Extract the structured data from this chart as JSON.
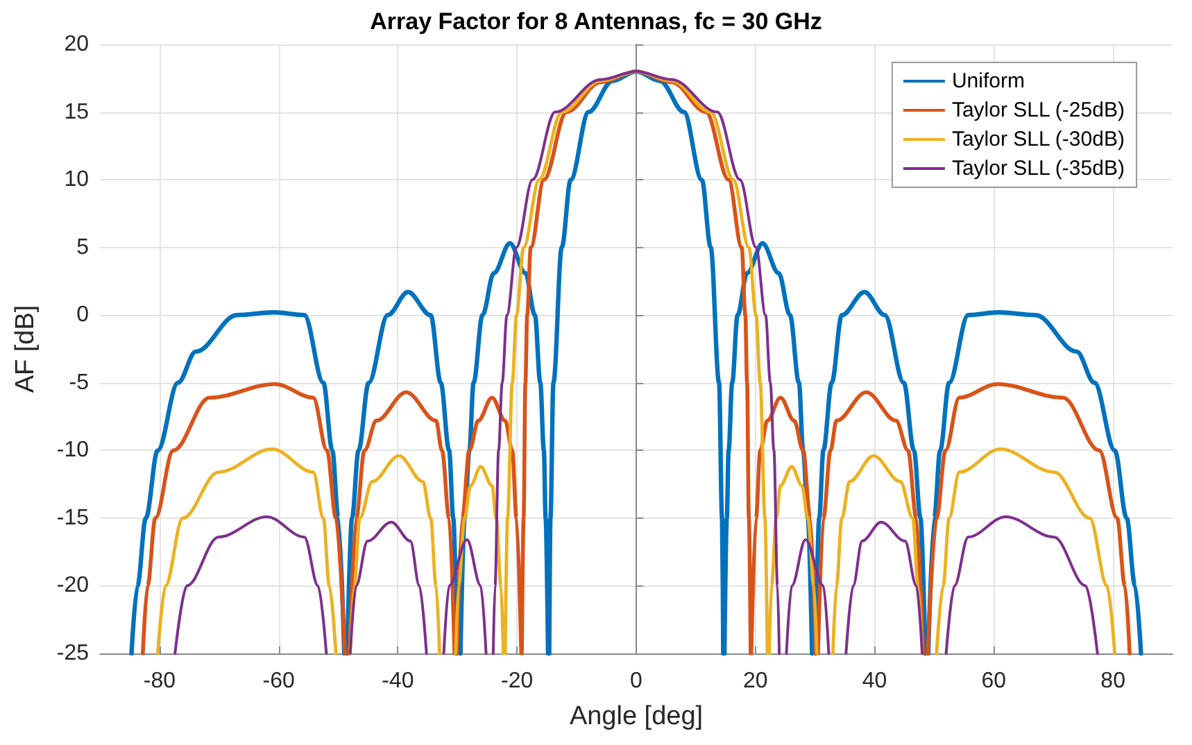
{
  "chart_data": {
    "type": "line",
    "title": "Array Factor for 8 Antennas, fc = 30 GHz",
    "xlabel": "Angle [deg]",
    "ylabel": "AF [dB]",
    "xlim": [
      -90,
      90
    ],
    "xticks": [
      -80,
      -60,
      -40,
      -20,
      0,
      20,
      40,
      60,
      80
    ],
    "ylim": [
      -25,
      20
    ],
    "yticks": [
      -25,
      -20,
      -15,
      -10,
      -5,
      0,
      5,
      10,
      15,
      20
    ],
    "grid": true,
    "legend": "top right",
    "marker": "none",
    "line_style": "solid",
    "series": [
      {
        "name": "Uniform",
        "color": "#0072bd",
        "x": [
          -84.7,
          -83.7,
          -82.3,
          -80.3,
          -76.9,
          -73.9,
          -67.0,
          -60.8,
          -55.7,
          -52.5,
          -51.0,
          -50.0,
          -49.0,
          -48.8,
          -48.5,
          -47.7,
          -46.6,
          -44.9,
          -41.7,
          -38.3,
          -34.5,
          -32.8,
          -31.4,
          -30.7,
          -30.1,
          -29.8,
          -29.5,
          -28.8,
          -28.0,
          -27.3,
          -25.8,
          -23.9,
          -21.2,
          -18.6,
          -17.0,
          -16.1,
          -15.5,
          -15.2,
          -14.8,
          -14.7,
          -14.6,
          -14.4,
          -13.9,
          -12.5,
          -11.0,
          -8.0,
          -4,
          0,
          4,
          8.0,
          11.0,
          12.5,
          13.9,
          14.4,
          14.6,
          14.7,
          14.8,
          15.2,
          15.5,
          16.1,
          17.0,
          18.6,
          21.2,
          23.9,
          25.8,
          27.3,
          28.0,
          28.8,
          29.5,
          29.8,
          30.1,
          30.7,
          31.4,
          32.8,
          34.5,
          38.3,
          41.7,
          44.9,
          46.6,
          47.7,
          48.5,
          48.8,
          49.0,
          50.0,
          51.0,
          52.5,
          55.7,
          60.8,
          67.0,
          73.9,
          76.9,
          80.3,
          82.3,
          83.7,
          84.7
        ],
        "values": [
          -25,
          -20,
          -15,
          -10,
          -5,
          -2.7,
          0,
          0.2,
          0,
          -5,
          -10,
          -15,
          -25,
          null,
          -25,
          -15,
          -10,
          -5,
          0,
          1.7,
          0,
          -5,
          -10,
          -15,
          -25,
          null,
          -25,
          -15,
          -10,
          -5,
          0,
          3.1,
          5.3,
          3.1,
          0,
          -5,
          -10,
          -15,
          -25,
          null,
          -25,
          -15,
          -5,
          5,
          10,
          15,
          17.3,
          18.0,
          17.3,
          15,
          10,
          5,
          -5,
          -15,
          -25,
          null,
          -25,
          -15,
          -10,
          -5,
          0,
          3.1,
          5.3,
          3.1,
          0,
          -5,
          -10,
          -15,
          -25,
          null,
          -25,
          -15,
          -10,
          -5,
          0,
          1.7,
          0,
          -5,
          -10,
          -15,
          -25,
          null,
          -25,
          -15,
          -10,
          -5,
          0,
          0.2,
          0,
          -2.7,
          -5,
          -10,
          -15,
          -20,
          -25
        ]
      },
      {
        "name": "Taylor SLL (-25dB)",
        "color": "#d95319",
        "x": [
          -82.8,
          -82.0,
          -80.7,
          -77.7,
          -71.6,
          -60.6,
          -54.2,
          -51.9,
          -50.4,
          -48.9,
          -48.5,
          -48.1,
          -47.0,
          -45.6,
          -43.6,
          -38.6,
          -33.6,
          -32.6,
          -31.4,
          -30.5,
          -30.3,
          -30.1,
          -29.2,
          -28.0,
          -26.5,
          -24.2,
          -22.0,
          -20.8,
          -20.1,
          -19.3,
          -19.25,
          -19.2,
          -18.9,
          -18.6,
          -18.3,
          -17.7,
          -15.5,
          -11.7,
          -6,
          0,
          6,
          11.7,
          15.5,
          17.7,
          18.3,
          18.6,
          18.9,
          19.2,
          19.25,
          19.3,
          20.1,
          20.8,
          22.0,
          24.2,
          26.5,
          28.0,
          29.2,
          30.1,
          30.3,
          30.5,
          31.4,
          32.6,
          33.6,
          38.6,
          43.6,
          45.6,
          47.0,
          48.1,
          48.5,
          48.9,
          50.4,
          51.9,
          54.2,
          60.6,
          71.6,
          77.7,
          80.7,
          82.0,
          82.8
        ],
        "values": [
          -25,
          -20,
          -15,
          -10,
          -6.1,
          -5.1,
          -6.1,
          -10,
          -15,
          -25,
          null,
          -25,
          -15,
          -10,
          -7.8,
          -5.7,
          -7.8,
          -10,
          -15,
          -25,
          null,
          -25,
          -15,
          -10,
          -7.8,
          -6.1,
          -7.8,
          -10,
          -15,
          -25,
          null,
          -25,
          -15,
          -5,
          0,
          5,
          10,
          15,
          17.2,
          18.0,
          17.2,
          15,
          10,
          5,
          0,
          -5,
          -15,
          -25,
          null,
          -25,
          -15,
          -10,
          -7.8,
          -6.1,
          -7.8,
          -10,
          -15,
          -25,
          null,
          -25,
          -15,
          -10,
          -7.8,
          -5.7,
          -7.8,
          -10,
          -15,
          -25,
          null,
          -25,
          -15,
          -10,
          -6.1,
          -5.1,
          -6.1,
          -10,
          -15,
          -20,
          -25
        ]
      },
      {
        "name": "Taylor SLL (-30dB)",
        "color": "#edb120",
        "x": [
          -80.3,
          -79.0,
          -76.1,
          -70.1,
          -61.1,
          -54.2,
          -52.5,
          -51.5,
          -50.4,
          -49.2,
          -48.0,
          -47.3,
          -46.4,
          -44.3,
          -39.8,
          -35.8,
          -34.5,
          -33.6,
          -33.0,
          -31.6,
          -30.3,
          -29.8,
          -28.8,
          -27.8,
          -26.1,
          -24.2,
          -23.5,
          -22.7,
          -22.3,
          -22.15,
          -22.0,
          -21.6,
          -20.8,
          -20.1,
          -18.9,
          -16.3,
          -12.5,
          -6,
          0,
          6,
          12.5,
          16.3,
          18.9,
          20.1,
          20.8,
          21.6,
          22.0,
          22.15,
          22.3,
          22.7,
          23.5,
          24.2,
          26.1,
          27.8,
          28.8,
          29.8,
          30.3,
          31.6,
          33.0,
          33.6,
          34.5,
          35.8,
          39.8,
          44.3,
          46.4,
          47.3,
          48.0,
          49.2,
          50.4,
          51.5,
          52.5,
          54.2,
          61.1,
          70.1,
          76.1,
          79.0,
          80.3
        ],
        "values": [
          -25,
          -20,
          -15,
          -11.6,
          -9.9,
          -11.6,
          -15,
          -20,
          -25,
          null,
          -25,
          -20,
          -15,
          -12.3,
          -10.4,
          -12.3,
          -15,
          -20,
          -25,
          null,
          -25,
          -20,
          -15,
          -12.6,
          -11.2,
          -12.6,
          -15,
          -20,
          -25,
          null,
          -25,
          -15,
          -5,
          0,
          5,
          10,
          15,
          17.3,
          18.0,
          17.3,
          15,
          10,
          5,
          0,
          -5,
          -15,
          -25,
          null,
          -25,
          -20,
          -15,
          -12.6,
          -11.2,
          -12.6,
          -15,
          -20,
          -25,
          null,
          -25,
          -20,
          -15,
          -12.3,
          -10.4,
          -12.3,
          -15,
          -20,
          -25,
          null,
          -25,
          -20,
          -15,
          -11.6,
          -9.9,
          -11.6,
          -15,
          -20,
          -25
        ]
      },
      {
        "name": "Taylor SLL (-35dB)",
        "color": "#7e2f8e",
        "x": [
          -77.4,
          -75.4,
          -70.1,
          -62.0,
          -55.7,
          -53.4,
          -52.0,
          -50,
          -48.0,
          -47.0,
          -45.1,
          -41.1,
          -37.9,
          -36.4,
          -35.2,
          -33.8,
          -32.3,
          -31.4,
          -28.4,
          -26.1,
          -25.2,
          -24.6,
          -24.0,
          -23.7,
          -23.1,
          -22.5,
          -21.7,
          -20.1,
          -17.4,
          -13.6,
          -6,
          0,
          6,
          13.6,
          17.4,
          20.1,
          21.7,
          22.5,
          23.1,
          23.7,
          24.0,
          24.6,
          25.2,
          26.1,
          28.4,
          31.4,
          32.3,
          33.8,
          35.2,
          36.4,
          37.9,
          41.1,
          45.1,
          47.0,
          48.0,
          50,
          52.0,
          53.4,
          55.7,
          62.0,
          70.1,
          75.4,
          77.4
        ],
        "values": [
          -25,
          -20,
          -16.4,
          -14.9,
          -16.4,
          -20,
          -25,
          null,
          -25,
          -20,
          -16.7,
          -15.3,
          -16.7,
          -20,
          -25,
          null,
          -25,
          -20,
          -16.6,
          -20,
          -25,
          null,
          -25,
          -20,
          -10,
          -5,
          0,
          5,
          10,
          15,
          17.4,
          18.0,
          17.4,
          15,
          10,
          5,
          0,
          -5,
          -10,
          -20,
          -25,
          null,
          -25,
          -20,
          -16.6,
          -20,
          -25,
          null,
          -25,
          -20,
          -16.7,
          -15.3,
          -16.7,
          -20,
          -25,
          null,
          -25,
          -20,
          -16.4,
          -14.9,
          -16.4,
          -20,
          -25
        ]
      }
    ]
  }
}
